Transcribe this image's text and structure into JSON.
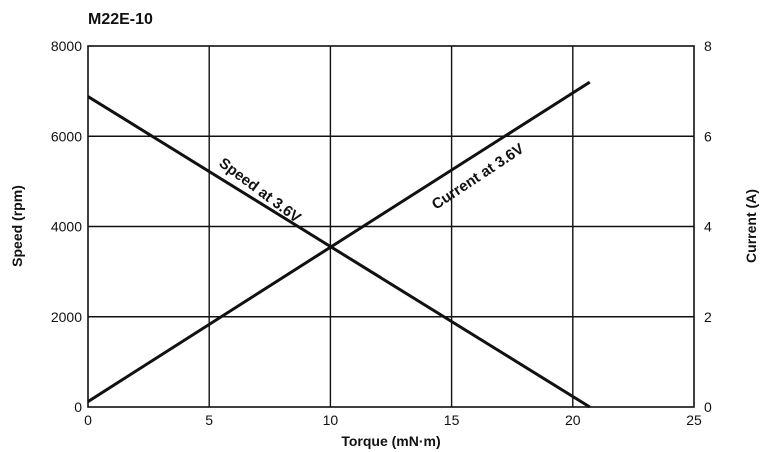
{
  "chart_data": {
    "type": "line",
    "title": "M22E-10",
    "xlabel": "Torque (mN·m)",
    "ylabel": "Speed (rpm)",
    "y2label": "Current (A)",
    "xlim": [
      0,
      25
    ],
    "ylim": [
      0,
      8000
    ],
    "y2lim": [
      0,
      8
    ],
    "xticks": [
      "0",
      "5",
      "10",
      "15",
      "20",
      "25"
    ],
    "yticks": [
      "0",
      "2000",
      "4000",
      "6000",
      "8000"
    ],
    "y2ticks": [
      "0",
      "2",
      "4",
      "6",
      "8"
    ],
    "grid": true,
    "series": [
      {
        "name": "Speed at 3.6V",
        "axis": "left",
        "x": [
          0,
          20.7
        ],
        "y": [
          6880,
          0
        ]
      },
      {
        "name": "Current at 3.6V",
        "axis": "right",
        "x": [
          0,
          20.7
        ],
        "y": [
          0.12,
          7.2
        ]
      }
    ]
  }
}
